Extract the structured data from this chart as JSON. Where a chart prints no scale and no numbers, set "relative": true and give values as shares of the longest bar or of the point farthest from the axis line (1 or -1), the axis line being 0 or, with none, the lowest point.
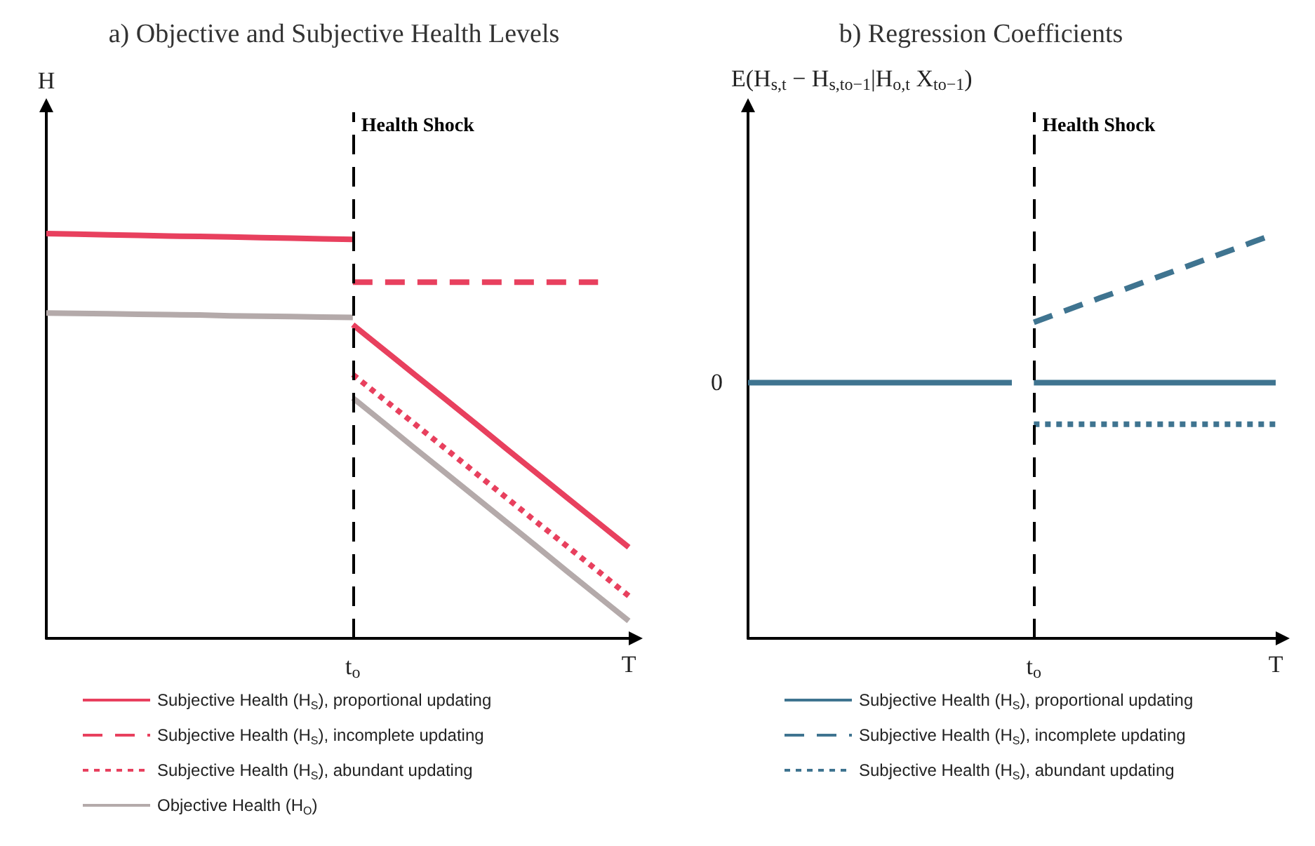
{
  "chart_data": [
    {
      "type": "line",
      "title": "a) Objective and Subjective Health Levels",
      "ylabel": "H",
      "relative": true,
      "categories": [
        null,
        null,
        null,
        null,
        null,
        null,
        null,
        null,
        null,
        null,
        "t$_{o}$",
        null,
        null,
        null,
        null,
        null,
        null,
        null,
        null,
        "T"
      ],
      "legend": "bottom",
      "line_style": "solid",
      "ref_lines": [
        {
          "axis": "x",
          "value": "t$_{o}$",
          "label": "Health Shock",
          "line_style": "dashed",
          "color": "#000000"
        }
      ],
      "series": [
        {
          "color": "#e8405e",
          "values": [
            1,
            0.999,
            0.997,
            0.996,
            0.994,
            0.993,
            0.992,
            0.99,
            0.989,
            0.987,
            0.986,
            null,
            null,
            null,
            null,
            null,
            null,
            null,
            null,
            null
          ]
        },
        {
          "color": "#b4aaaa",
          "values": [
            0.804,
            0.803,
            0.802,
            0.801,
            0.8,
            0.799,
            0.797,
            0.796,
            0.795,
            0.794,
            0.793,
            null,
            null,
            null,
            null,
            null,
            null,
            null,
            null,
            null
          ]
        },
        {
          "name": "Subjective Health (H$_{S}$), proportional updating",
          "color": "#e8405e",
          "values": [
            null,
            null,
            null,
            null,
            null,
            null,
            null,
            null,
            null,
            null,
            0.775,
            0.714,
            0.653,
            0.592,
            0.531,
            0.469,
            0.408,
            0.347,
            0.286,
            0.225
          ]
        },
        {
          "name": "Subjective Health (H$_{S}$), incomplete updating",
          "color": "#e8405e",
          "line_style": "dashed",
          "values": [
            null,
            null,
            null,
            null,
            null,
            null,
            null,
            null,
            null,
            null,
            0.88,
            0.88,
            0.88,
            0.88,
            0.88,
            0.88,
            0.88,
            0.88,
            0.88,
            null
          ]
        },
        {
          "name": "Subjective Health (H$_{S}$), abundant updating",
          "color": "#e8405e",
          "line_style": "dotted",
          "values": [
            null,
            null,
            null,
            null,
            null,
            null,
            null,
            null,
            null,
            null,
            0.652,
            0.591,
            0.531,
            0.47,
            0.409,
            0.348,
            0.287,
            0.227,
            0.166,
            0.105
          ]
        },
        {
          "name": "Objective Health (H$_{O}$)",
          "color": "#b4aaaa",
          "values": [
            null,
            null,
            null,
            null,
            null,
            null,
            null,
            null,
            null,
            null,
            0.594,
            0.533,
            0.471,
            0.41,
            0.349,
            0.288,
            0.227,
            0.165,
            0.104,
            0.043
          ]
        }
      ]
    },
    {
      "type": "line",
      "title": "b) Regression Coefficients",
      "ylabel": "E(H$_{s,t}$ − H$_{s,to−1}$|H$_{o,t}$ X$_{to−1}$)",
      "relative": true,
      "annotations": [
        "0"
      ],
      "categories": [
        null,
        null,
        null,
        null,
        null,
        null,
        null,
        null,
        null,
        null,
        null,
        null,
        null,
        "t$_{o}$",
        null,
        null,
        null,
        null,
        null,
        null,
        null,
        null,
        null,
        null,
        "T"
      ],
      "legend": "bottom",
      "line_style": "solid",
      "ref_lines": [
        {
          "axis": "x",
          "value": "t$_{o}$",
          "label": "Health Shock",
          "line_style": "dashed",
          "color": "#000000"
        }
      ],
      "series": [
        {
          "color": "#3f7490",
          "values": [
            0.632,
            0.632,
            0.632,
            0.632,
            0.632,
            0.632,
            0.632,
            0.632,
            0.632,
            0.632,
            0.632,
            0.632,
            0.632,
            null,
            null,
            null,
            null,
            null,
            null,
            null,
            null,
            null,
            null,
            null,
            null
          ]
        },
        {
          "name": "Subjective Health (H$_{S}$), proportional updating",
          "color": "#3f7490",
          "values": [
            null,
            null,
            null,
            null,
            null,
            null,
            null,
            null,
            null,
            null,
            null,
            null,
            null,
            0.632,
            0.632,
            0.632,
            0.632,
            0.632,
            0.632,
            0.632,
            0.632,
            0.632,
            0.632,
            0.632,
            0.632
          ]
        },
        {
          "name": "Subjective Health (H$_{S}$), incomplete updating",
          "color": "#3f7490",
          "line_style": "dashed",
          "values": [
            null,
            null,
            null,
            null,
            null,
            null,
            null,
            null,
            null,
            null,
            null,
            null,
            null,
            0.781,
            0.801,
            0.821,
            0.841,
            0.86,
            0.88,
            0.9,
            0.92,
            0.94,
            0.96,
            0.98,
            1
          ]
        },
        {
          "name": "Subjective Health (H$_{S}$), abundant updating",
          "color": "#3f7490",
          "line_style": "dotted",
          "values": [
            null,
            null,
            null,
            null,
            null,
            null,
            null,
            null,
            null,
            null,
            null,
            null,
            null,
            0.529,
            0.529,
            0.529,
            0.529,
            0.529,
            0.529,
            0.529,
            0.529,
            0.529,
            0.529,
            0.529,
            0.529
          ]
        }
      ]
    }
  ]
}
